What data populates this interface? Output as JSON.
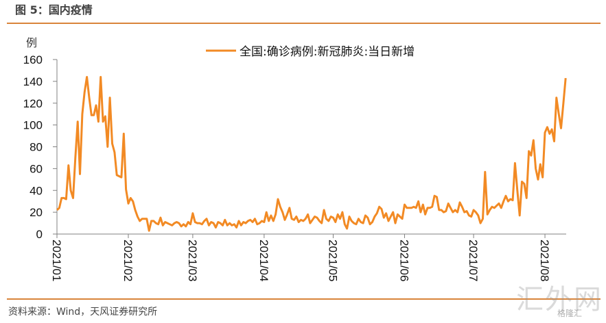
{
  "header": {
    "title": "图 5：国内疫情"
  },
  "footer": {
    "source": "资料来源：Wind，天风证券研究所"
  },
  "watermark": {
    "text": "汇外网",
    "logo": "格隆汇"
  },
  "colors": {
    "accent": "#d9843a",
    "series": "#f28a24",
    "axis": "#808080"
  },
  "chart_data": {
    "type": "line",
    "title": "",
    "ylabel": "例",
    "xlabel": "",
    "ylim": [
      0,
      160
    ],
    "yticks": [
      "0",
      "20",
      "40",
      "60",
      "80",
      "100",
      "120",
      "140",
      "160"
    ],
    "xticks": [
      "2021/01",
      "2021/02",
      "2021/03",
      "2021/04",
      "2021/05",
      "2021/06",
      "2021/07",
      "2021/08"
    ],
    "grid": false,
    "legend": "top-center",
    "x_unit": "daily values per month, starting day 1",
    "series": [
      {
        "name": "全国:确诊病例:新冠肺炎:当日新增",
        "values_by_month": {
          "2021/01": [
            22,
            24,
            33,
            33,
            32,
            63,
            40,
            33,
            70,
            103,
            55,
            110,
            130,
            144,
            125,
            109,
            109,
            118,
            103,
            144,
            103,
            108,
            80,
            125,
            83,
            75,
            54,
            53,
            52,
            92,
            41
          ],
          "2021/02": [
            28,
            33,
            30,
            22,
            16,
            12,
            14,
            14,
            14,
            3,
            12,
            12,
            10,
            9,
            15,
            8,
            11,
            10,
            9,
            8,
            10,
            11,
            10,
            7,
            9,
            7,
            11,
            9
          ],
          "2021/03": [
            19,
            11,
            10,
            10,
            9,
            12,
            14,
            8,
            11,
            10,
            6,
            11,
            10,
            8,
            13,
            8,
            10,
            8,
            9,
            6,
            12,
            8,
            11,
            10,
            12,
            13,
            11,
            14,
            9,
            10,
            12
          ],
          "2021/04": [
            11,
            20,
            12,
            17,
            12,
            18,
            32,
            25,
            20,
            13,
            18,
            24,
            14,
            13,
            16,
            11,
            13,
            12,
            14,
            18,
            10,
            13,
            16,
            15,
            12,
            10,
            22,
            14,
            12,
            16
          ],
          "2021/05": [
            15,
            11,
            18,
            14,
            20,
            9,
            5,
            16,
            12,
            10,
            9,
            14,
            11,
            10,
            17,
            15,
            9,
            11,
            16,
            19,
            25,
            23,
            15,
            19,
            12,
            16,
            20,
            10,
            18,
            16,
            14
          ],
          "2021/06": [
            27,
            24,
            24,
            24,
            25,
            24,
            30,
            20,
            27,
            18,
            24,
            24,
            25,
            35,
            34,
            22,
            22,
            20,
            21,
            28,
            24,
            20,
            22,
            20,
            29,
            25,
            20,
            21,
            17,
            16
          ],
          "2021/07": [
            22,
            20,
            17,
            10,
            14,
            57,
            18,
            22,
            25,
            24,
            26,
            28,
            24,
            30,
            35,
            30,
            32,
            31,
            65,
            40,
            17,
            48,
            46,
            33,
            76,
            72,
            86,
            60,
            50,
            64,
            52
          ],
          "2021/08": [
            93,
            98,
            92,
            96,
            85,
            125,
            110,
            97,
            120,
            143
          ]
        }
      }
    ]
  }
}
